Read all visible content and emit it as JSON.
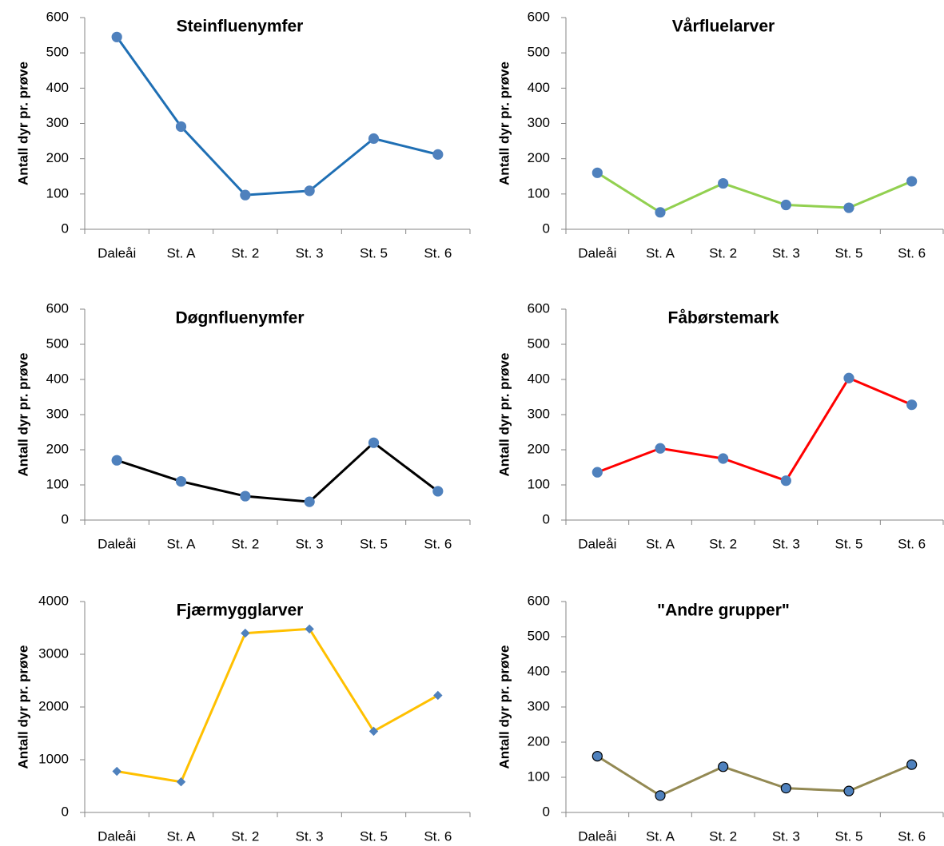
{
  "chart_data": [
    {
      "type": "line",
      "title": "Steinfluenymfer",
      "ylabel": "Antall dyr pr. prøve",
      "categories": [
        "Daleåi",
        "St. A",
        "St. 2",
        "St. 3",
        "St. 5",
        "St. 6"
      ],
      "series": [
        {
          "name": "Steinfluenymfer",
          "color": "#1f6fb4",
          "marker": "circle",
          "marker_color": "#4f81bd",
          "marker_edge": "#4f81bd",
          "values": [
            545,
            291,
            97,
            109,
            257,
            212
          ]
        }
      ],
      "ylim": [
        0,
        600
      ],
      "yticks": [
        0,
        100,
        200,
        300,
        400,
        500,
        600
      ]
    },
    {
      "type": "line",
      "title": "Vårfluelarver",
      "ylabel": "Antall dyr pr. prøve",
      "categories": [
        "Daleåi",
        "St. A",
        "St. 2",
        "St. 3",
        "St. 5",
        "St. 6"
      ],
      "series": [
        {
          "name": "Vårfluelarver",
          "color": "#92d050",
          "marker": "circle",
          "marker_color": "#4f81bd",
          "marker_edge": "#4f81bd",
          "values": [
            160,
            48,
            130,
            69,
            61,
            136
          ]
        }
      ],
      "ylim": [
        0,
        600
      ],
      "yticks": [
        0,
        100,
        200,
        300,
        400,
        500,
        600
      ]
    },
    {
      "type": "line",
      "title": "Døgnfluenymfer",
      "ylabel": "Antall dyr pr. prøve",
      "categories": [
        "Daleåi",
        "St. A",
        "St. 2",
        "St. 3",
        "St. 5",
        "St. 6"
      ],
      "series": [
        {
          "name": "Døgnfluenymfer",
          "color": "#000000",
          "marker": "circle",
          "marker_color": "#4f81bd",
          "marker_edge": "#4f81bd",
          "values": [
            170,
            110,
            68,
            52,
            220,
            82
          ]
        }
      ],
      "ylim": [
        0,
        600
      ],
      "yticks": [
        0,
        100,
        200,
        300,
        400,
        500,
        600
      ]
    },
    {
      "type": "line",
      "title": "Fåbørstemark",
      "ylabel": "Antall dyr pr. prøve",
      "categories": [
        "Daleåi",
        "St. A",
        "St. 2",
        "St. 3",
        "St. 5",
        "St. 6"
      ],
      "series": [
        {
          "name": "Fåbørstemark",
          "color": "#ff0000",
          "marker": "circle",
          "marker_color": "#4f81bd",
          "marker_edge": "#4f81bd",
          "values": [
            136,
            204,
            175,
            112,
            404,
            328
          ]
        }
      ],
      "ylim": [
        0,
        600
      ],
      "yticks": [
        0,
        100,
        200,
        300,
        400,
        500,
        600
      ]
    },
    {
      "type": "line",
      "title": "Fjærmygglarver",
      "ylabel": "Antall dyr pr. prøve",
      "categories": [
        "Daleåi",
        "St. A",
        "St. 2",
        "St. 3",
        "St. 5",
        "St. 6"
      ],
      "series": [
        {
          "name": "Fjærmygglarver",
          "color": "#ffc000",
          "marker": "diamond",
          "marker_color": "#4f81bd",
          "marker_edge": "#4f81bd",
          "values": [
            780,
            580,
            3400,
            3480,
            1540,
            2220
          ]
        }
      ],
      "ylim": [
        0,
        4000
      ],
      "yticks": [
        0,
        1000,
        2000,
        3000,
        4000
      ]
    },
    {
      "type": "line",
      "title": "\"Andre grupper\"",
      "ylabel": "Antall dyr pr. prøve",
      "categories": [
        "Daleåi",
        "St. A",
        "St. 2",
        "St. 3",
        "St. 5",
        "St. 6"
      ],
      "series": [
        {
          "name": "\"Andre grupper\"",
          "color": "#938953",
          "marker": "circle",
          "marker_color": "#4f81bd",
          "marker_edge": "#000000",
          "values": [
            160,
            48,
            130,
            69,
            61,
            136
          ]
        }
      ],
      "ylim": [
        0,
        600
      ],
      "yticks": [
        0,
        100,
        200,
        300,
        400,
        500,
        600
      ]
    }
  ]
}
